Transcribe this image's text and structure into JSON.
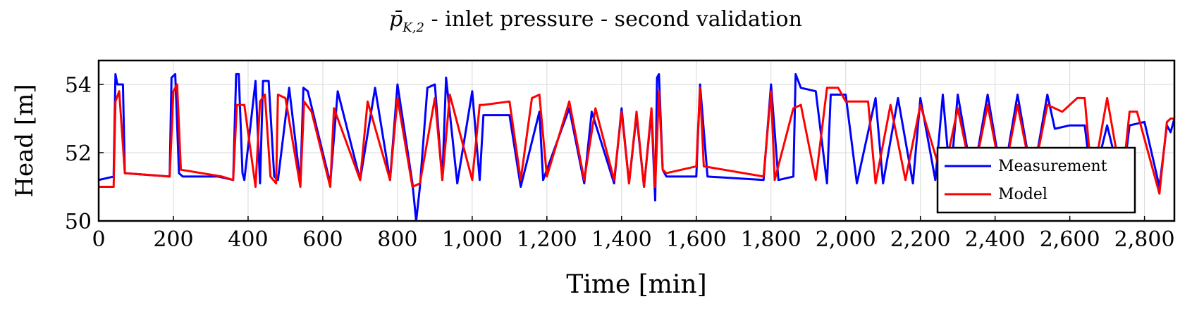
{
  "chart_data": {
    "type": "line",
    "title": {
      "symbol_base": "p̄",
      "symbol_sub": "K,2",
      "rest": " - inlet pressure - second validation"
    },
    "xlabel": "Time [min]",
    "ylabel": "Head [m]",
    "xlim": [
      0,
      2880
    ],
    "ylim": [
      50,
      54.7
    ],
    "xticks": [
      0,
      200,
      400,
      600,
      800,
      1000,
      1200,
      1400,
      1600,
      1800,
      2000,
      2200,
      2400,
      2600,
      2800
    ],
    "xtick_labels": [
      "0",
      "200",
      "400",
      "600",
      "800",
      "1,000",
      "1,200",
      "1,400",
      "1,600",
      "1,800",
      "2,000",
      "2,200",
      "2,400",
      "2,600",
      "2,800"
    ],
    "yticks": [
      50,
      52,
      54
    ],
    "ytick_labels": [
      "50",
      "52",
      "54"
    ],
    "grid": true,
    "legend_position": "bottom-right",
    "series": [
      {
        "name": "Measurement",
        "color": "#0000ff",
        "x": [
          0,
          40,
          45,
          50,
          65,
          70,
          190,
          195,
          205,
          215,
          225,
          320,
          360,
          368,
          375,
          385,
          390,
          420,
          432,
          440,
          455,
          470,
          480,
          510,
          540,
          548,
          560,
          620,
          640,
          700,
          740,
          780,
          800,
          840,
          850,
          860,
          880,
          900,
          920,
          930,
          960,
          1000,
          1020,
          1030,
          1100,
          1130,
          1180,
          1190,
          1260,
          1300,
          1320,
          1380,
          1400,
          1420,
          1440,
          1460,
          1480,
          1490,
          1495,
          1500,
          1510,
          1515,
          1520,
          1600,
          1610,
          1630,
          1780,
          1800,
          1820,
          1860,
          1866,
          1880,
          1920,
          1950,
          1960,
          2000,
          2030,
          2080,
          2100,
          2140,
          2180,
          2200,
          2240,
          2260,
          2280,
          2300,
          2340,
          2380,
          2420,
          2460,
          2500,
          2540,
          2560,
          2600,
          2640,
          2660,
          2700,
          2740,
          2760,
          2800,
          2840,
          2860,
          2870,
          2880
        ],
        "y": [
          51.2,
          51.3,
          54.3,
          54.0,
          54.0,
          51.4,
          51.3,
          54.2,
          54.3,
          51.4,
          51.3,
          51.3,
          51.2,
          54.3,
          54.3,
          51.4,
          51.2,
          54.1,
          51.1,
          54.1,
          54.1,
          51.3,
          51.2,
          53.9,
          51.1,
          53.9,
          53.8,
          51.1,
          53.8,
          51.2,
          53.9,
          51.2,
          54.0,
          51.1,
          50.0,
          51.0,
          53.9,
          54.0,
          51.2,
          54.2,
          51.1,
          53.8,
          51.2,
          53.1,
          53.1,
          51.0,
          53.2,
          51.2,
          53.3,
          51.1,
          53.2,
          51.1,
          53.3,
          51.1,
          53.1,
          51.0,
          53.2,
          50.6,
          54.2,
          54.3,
          51.5,
          51.4,
          51.3,
          51.3,
          54.0,
          51.3,
          51.2,
          54.0,
          51.2,
          51.3,
          54.3,
          53.9,
          53.8,
          51.1,
          53.7,
          53.7,
          51.1,
          53.6,
          51.1,
          53.6,
          51.1,
          53.6,
          51.2,
          53.7,
          51.2,
          53.7,
          51.2,
          53.7,
          51.1,
          53.7,
          51.2,
          53.7,
          52.7,
          52.8,
          52.8,
          51.0,
          52.8,
          51.0,
          52.8,
          52.9,
          51.0,
          52.8,
          52.6,
          53.0
        ],
        "description": ""
      },
      {
        "name": "Model",
        "color": "#ff0000",
        "x": [
          0,
          40,
          45,
          55,
          70,
          190,
          200,
          210,
          220,
          330,
          360,
          370,
          390,
          420,
          432,
          445,
          460,
          475,
          480,
          500,
          540,
          550,
          570,
          620,
          630,
          700,
          720,
          780,
          800,
          840,
          860,
          900,
          920,
          940,
          1000,
          1020,
          1030,
          1100,
          1130,
          1160,
          1180,
          1200,
          1260,
          1300,
          1330,
          1380,
          1400,
          1420,
          1440,
          1460,
          1480,
          1490,
          1500,
          1510,
          1520,
          1600,
          1610,
          1620,
          1780,
          1800,
          1810,
          1860,
          1880,
          1920,
          1950,
          1965,
          1980,
          2000,
          2060,
          2080,
          2120,
          2160,
          2200,
          2260,
          2300,
          2340,
          2380,
          2420,
          2460,
          2500,
          2540,
          2560,
          2580,
          2620,
          2640,
          2660,
          2700,
          2740,
          2760,
          2780,
          2840,
          2860,
          2870,
          2880
        ],
        "y": [
          51.0,
          51.0,
          53.5,
          53.8,
          51.4,
          51.3,
          53.8,
          54.0,
          51.5,
          51.3,
          51.2,
          53.4,
          53.4,
          51.0,
          53.5,
          53.7,
          51.3,
          51.1,
          53.7,
          53.6,
          51.0,
          53.5,
          53.2,
          51.0,
          53.3,
          51.2,
          53.5,
          51.2,
          53.6,
          51.0,
          51.1,
          53.6,
          51.2,
          53.7,
          51.2,
          53.4,
          53.4,
          53.5,
          51.2,
          53.6,
          53.7,
          51.3,
          53.5,
          51.2,
          53.3,
          51.2,
          53.2,
          51.1,
          53.2,
          51.0,
          53.3,
          51.0,
          53.8,
          51.5,
          51.4,
          51.6,
          53.9,
          51.6,
          51.3,
          53.8,
          51.2,
          53.3,
          53.4,
          51.2,
          53.9,
          53.9,
          53.9,
          53.5,
          53.5,
          51.1,
          53.4,
          51.2,
          53.4,
          51.2,
          53.3,
          51.2,
          53.4,
          51.1,
          53.4,
          51.2,
          53.4,
          53.3,
          53.2,
          53.6,
          53.6,
          51.1,
          53.6,
          51.1,
          53.2,
          53.2,
          50.8,
          52.9,
          53.0,
          53.0
        ],
        "description": ""
      }
    ]
  }
}
